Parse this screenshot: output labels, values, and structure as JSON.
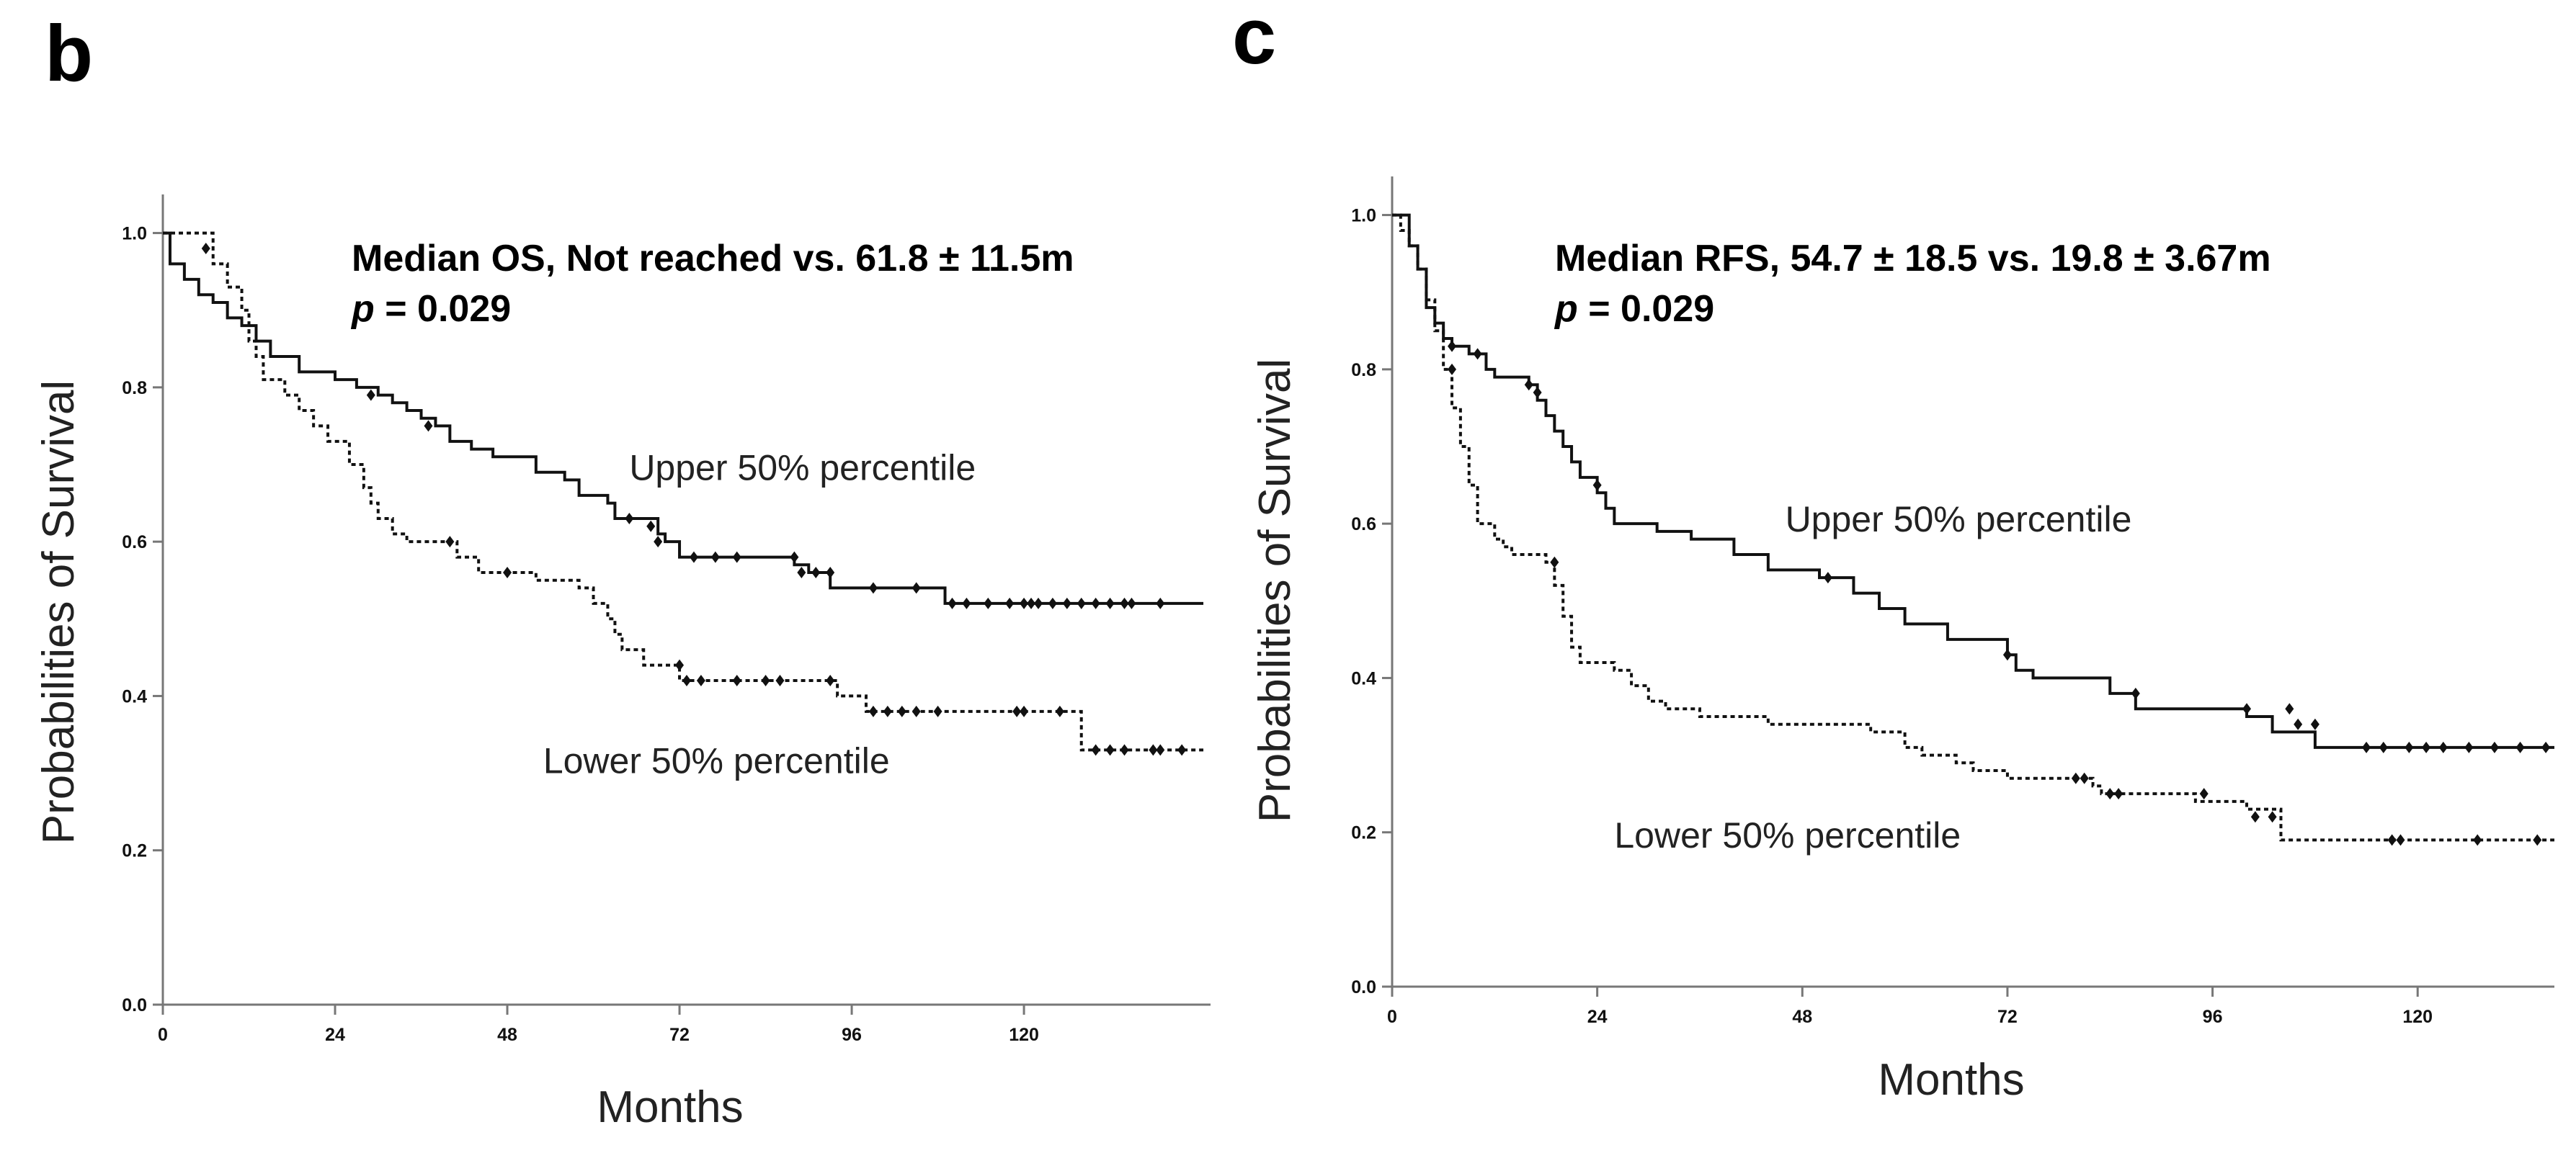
{
  "chart_data": [
    {
      "type": "line",
      "subtype": "kaplan-meier",
      "panel": "b",
      "annotation": {
        "line1": "Median OS, Not reached vs. 61.8 ± 11.5m",
        "p_italic": "p",
        "p_rest": " = 0.029"
      },
      "xlabel": "Months",
      "ylabel": "Probabilities of Survival",
      "xlim": [
        0,
        146
      ],
      "ylim": [
        0,
        1.05
      ],
      "xticks": [
        0,
        24,
        48,
        72,
        96,
        120
      ],
      "yticks": [
        "0.0",
        "0.2",
        "0.4",
        "0.6",
        "0.8",
        "1.0"
      ],
      "series": [
        {
          "name": "Upper 50% percentile",
          "style": "solid",
          "label_pos": [
            65,
            0.68
          ],
          "steps": [
            [
              0,
              1.0
            ],
            [
              1,
              0.96
            ],
            [
              3,
              0.94
            ],
            [
              5,
              0.92
            ],
            [
              7,
              0.91
            ],
            [
              9,
              0.89
            ],
            [
              11,
              0.88
            ],
            [
              13,
              0.86
            ],
            [
              15,
              0.84
            ],
            [
              19,
              0.82
            ],
            [
              24,
              0.81
            ],
            [
              27,
              0.8
            ],
            [
              30,
              0.79
            ],
            [
              32,
              0.78
            ],
            [
              34,
              0.77
            ],
            [
              36,
              0.76
            ],
            [
              38,
              0.75
            ],
            [
              40,
              0.73
            ],
            [
              43,
              0.72
            ],
            [
              46,
              0.71
            ],
            [
              52,
              0.69
            ],
            [
              56,
              0.68
            ],
            [
              58,
              0.66
            ],
            [
              62,
              0.65
            ],
            [
              63,
              0.63
            ],
            [
              69,
              0.61
            ],
            [
              70,
              0.6
            ],
            [
              72,
              0.58
            ],
            [
              88,
              0.57
            ],
            [
              90,
              0.56
            ],
            [
              93,
              0.54
            ],
            [
              109,
              0.52
            ],
            [
              145,
              0.52
            ]
          ],
          "censors": [
            [
              6,
              0.98
            ],
            [
              29,
              0.79
            ],
            [
              37,
              0.75
            ],
            [
              65,
              0.63
            ],
            [
              68,
              0.62
            ],
            [
              69,
              0.6
            ],
            [
              74,
              0.58
            ],
            [
              77,
              0.58
            ],
            [
              80,
              0.58
            ],
            [
              88,
              0.58
            ],
            [
              89,
              0.56
            ],
            [
              91,
              0.56
            ],
            [
              93,
              0.56
            ],
            [
              99,
              0.54
            ],
            [
              105,
              0.54
            ],
            [
              110,
              0.52
            ],
            [
              112,
              0.52
            ],
            [
              115,
              0.52
            ],
            [
              118,
              0.52
            ],
            [
              120,
              0.52
            ],
            [
              121,
              0.52
            ],
            [
              122,
              0.52
            ],
            [
              124,
              0.52
            ],
            [
              126,
              0.52
            ],
            [
              128,
              0.52
            ],
            [
              130,
              0.52
            ],
            [
              132,
              0.52
            ],
            [
              134,
              0.52
            ],
            [
              135,
              0.52
            ],
            [
              139,
              0.52
            ]
          ]
        },
        {
          "name": "Lower 50% percentile",
          "style": "dotted",
          "label_pos": [
            53,
            0.3
          ],
          "steps": [
            [
              0,
              1.0
            ],
            [
              7,
              0.96
            ],
            [
              9,
              0.93
            ],
            [
              11,
              0.9
            ],
            [
              12,
              0.86
            ],
            [
              13,
              0.84
            ],
            [
              14,
              0.81
            ],
            [
              17,
              0.79
            ],
            [
              19,
              0.77
            ],
            [
              21,
              0.75
            ],
            [
              23,
              0.73
            ],
            [
              26,
              0.7
            ],
            [
              28,
              0.67
            ],
            [
              29,
              0.65
            ],
            [
              30,
              0.63
            ],
            [
              32,
              0.61
            ],
            [
              34,
              0.6
            ],
            [
              41,
              0.58
            ],
            [
              44,
              0.56
            ],
            [
              52,
              0.55
            ],
            [
              58,
              0.54
            ],
            [
              60,
              0.52
            ],
            [
              62,
              0.5
            ],
            [
              63,
              0.48
            ],
            [
              64,
              0.46
            ],
            [
              67,
              0.44
            ],
            [
              72,
              0.42
            ],
            [
              94,
              0.4
            ],
            [
              98,
              0.38
            ],
            [
              112,
              0.38
            ],
            [
              128,
              0.33
            ],
            [
              145,
              0.33
            ]
          ],
          "censors": [
            [
              40,
              0.6
            ],
            [
              48,
              0.56
            ],
            [
              72,
              0.44
            ],
            [
              73,
              0.42
            ],
            [
              75,
              0.42
            ],
            [
              80,
              0.42
            ],
            [
              84,
              0.42
            ],
            [
              86,
              0.42
            ],
            [
              93,
              0.42
            ],
            [
              99,
              0.38
            ],
            [
              101,
              0.38
            ],
            [
              103,
              0.38
            ],
            [
              105,
              0.38
            ],
            [
              108,
              0.38
            ],
            [
              119,
              0.38
            ],
            [
              120,
              0.38
            ],
            [
              125,
              0.38
            ],
            [
              130,
              0.33
            ],
            [
              132,
              0.33
            ],
            [
              134,
              0.33
            ],
            [
              138,
              0.33
            ],
            [
              139,
              0.33
            ],
            [
              142,
              0.33
            ]
          ]
        }
      ]
    },
    {
      "type": "line",
      "subtype": "kaplan-meier",
      "panel": "c",
      "annotation": {
        "line1": "Median RFS, 54.7 ± 18.5 vs. 19.8 ± 3.67m",
        "p_italic": "p",
        "p_rest": " = 0.029"
      },
      "xlabel": "Months",
      "ylabel": "Probabilities of Survival",
      "xlim": [
        0,
        136
      ],
      "ylim": [
        0,
        1.05
      ],
      "xticks": [
        0,
        24,
        48,
        72,
        96,
        120
      ],
      "yticks": [
        "0.0",
        "0.2",
        "0.4",
        "0.6",
        "0.8",
        "1.0"
      ],
      "series": [
        {
          "name": "Upper 50% percentile",
          "style": "solid",
          "label_pos": [
            46,
            0.59
          ],
          "steps": [
            [
              0,
              1.0
            ],
            [
              2,
              0.96
            ],
            [
              3,
              0.93
            ],
            [
              4,
              0.88
            ],
            [
              5,
              0.86
            ],
            [
              6,
              0.84
            ],
            [
              7,
              0.83
            ],
            [
              9,
              0.82
            ],
            [
              11,
              0.8
            ],
            [
              12,
              0.79
            ],
            [
              16,
              0.78
            ],
            [
              17,
              0.76
            ],
            [
              18,
              0.74
            ],
            [
              19,
              0.72
            ],
            [
              20,
              0.7
            ],
            [
              21,
              0.68
            ],
            [
              22,
              0.66
            ],
            [
              24,
              0.64
            ],
            [
              25,
              0.62
            ],
            [
              26,
              0.6
            ],
            [
              31,
              0.59
            ],
            [
              35,
              0.58
            ],
            [
              40,
              0.56
            ],
            [
              44,
              0.54
            ],
            [
              50,
              0.53
            ],
            [
              54,
              0.51
            ],
            [
              57,
              0.49
            ],
            [
              60,
              0.47
            ],
            [
              65,
              0.45
            ],
            [
              72,
              0.43
            ],
            [
              73,
              0.41
            ],
            [
              75,
              0.4
            ],
            [
              84,
              0.38
            ],
            [
              87,
              0.36
            ],
            [
              100,
              0.35
            ],
            [
              103,
              0.33
            ],
            [
              108,
              0.31
            ],
            [
              136,
              0.31
            ]
          ],
          "censors": [
            [
              7,
              0.83
            ],
            [
              10,
              0.82
            ],
            [
              16,
              0.78
            ],
            [
              17,
              0.77
            ],
            [
              24,
              0.65
            ],
            [
              51,
              0.53
            ],
            [
              72,
              0.43
            ],
            [
              87,
              0.38
            ],
            [
              100,
              0.36
            ],
            [
              105,
              0.36
            ],
            [
              106,
              0.34
            ],
            [
              108,
              0.34
            ],
            [
              114,
              0.31
            ],
            [
              116,
              0.31
            ],
            [
              119,
              0.31
            ],
            [
              121,
              0.31
            ],
            [
              123,
              0.31
            ],
            [
              126,
              0.31
            ],
            [
              129,
              0.31
            ],
            [
              132,
              0.31
            ],
            [
              135,
              0.31
            ]
          ]
        },
        {
          "name": "Lower 50% percentile",
          "style": "dotted",
          "label_pos": [
            26,
            0.18
          ],
          "steps": [
            [
              0,
              1.0
            ],
            [
              1,
              0.98
            ],
            [
              2,
              0.96
            ],
            [
              3,
              0.93
            ],
            [
              4,
              0.89
            ],
            [
              5,
              0.85
            ],
            [
              6,
              0.8
            ],
            [
              7,
              0.75
            ],
            [
              8,
              0.7
            ],
            [
              9,
              0.65
            ],
            [
              10,
              0.6
            ],
            [
              12,
              0.58
            ],
            [
              13,
              0.57
            ],
            [
              14,
              0.56
            ],
            [
              18,
              0.55
            ],
            [
              19,
              0.52
            ],
            [
              20,
              0.48
            ],
            [
              21,
              0.44
            ],
            [
              22,
              0.42
            ],
            [
              26,
              0.41
            ],
            [
              28,
              0.39
            ],
            [
              30,
              0.37
            ],
            [
              32,
              0.36
            ],
            [
              36,
              0.35
            ],
            [
              44,
              0.34
            ],
            [
              56,
              0.33
            ],
            [
              60,
              0.31
            ],
            [
              62,
              0.3
            ],
            [
              66,
              0.29
            ],
            [
              68,
              0.28
            ],
            [
              72,
              0.27
            ],
            [
              82,
              0.26
            ],
            [
              83,
              0.25
            ],
            [
              94,
              0.24
            ],
            [
              100,
              0.23
            ],
            [
              104,
              0.19
            ],
            [
              136,
              0.19
            ]
          ],
          "censors": [
            [
              7,
              0.8
            ],
            [
              19,
              0.55
            ],
            [
              80,
              0.27
            ],
            [
              81,
              0.27
            ],
            [
              84,
              0.25
            ],
            [
              85,
              0.25
            ],
            [
              95,
              0.25
            ],
            [
              101,
              0.22
            ],
            [
              103,
              0.22
            ],
            [
              117,
              0.19
            ],
            [
              118,
              0.19
            ],
            [
              127,
              0.19
            ],
            [
              134,
              0.19
            ]
          ]
        }
      ]
    }
  ]
}
